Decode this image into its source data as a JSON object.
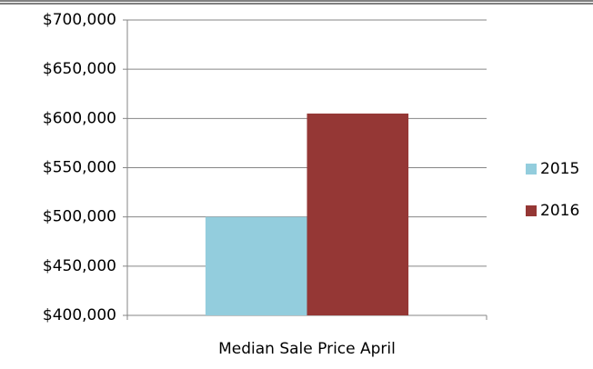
{
  "chart_data": {
    "type": "bar",
    "categories": [
      "Median Sale Price April"
    ],
    "series": [
      {
        "name": "2015",
        "color": "#93cddd",
        "values": [
          500000
        ]
      },
      {
        "name": "2016",
        "color": "#953735",
        "values": [
          605000
        ]
      }
    ],
    "ylim": [
      400000,
      700000
    ],
    "yticks": [
      {
        "value": 400000,
        "label": "$400,000"
      },
      {
        "value": 450000,
        "label": "$450,000"
      },
      {
        "value": 500000,
        "label": "$500,000"
      },
      {
        "value": 550000,
        "label": "$550,000"
      },
      {
        "value": 600000,
        "label": "$600,000"
      },
      {
        "value": 650000,
        "label": "$650,000"
      },
      {
        "value": 700000,
        "label": "$700,000"
      }
    ],
    "grid": true,
    "legend": "right"
  }
}
